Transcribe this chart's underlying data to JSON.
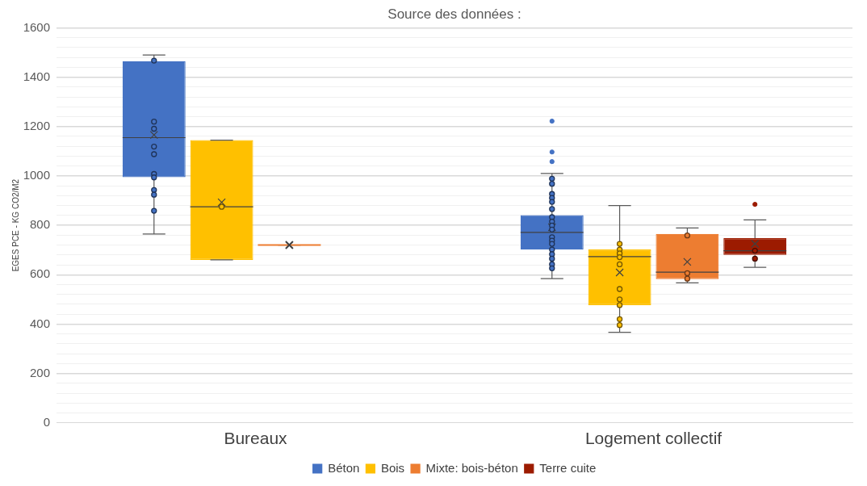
{
  "chart_data": {
    "type": "box",
    "subtitle": "Source des données :",
    "ylabel": "EGES PCE - KG CO2/M2",
    "categories": [
      "Bureaux",
      "Logement collectif"
    ],
    "ylim": [
      0,
      1600
    ],
    "yticks": [
      0,
      {
        "value": 40,
        "label": null
      },
      {
        "value": 80,
        "label": null
      },
      {
        "value": 120,
        "label": null
      },
      {
        "value": 160,
        "label": null
      },
      200,
      {
        "value": 240,
        "label": null
      },
      {
        "value": 280,
        "label": null
      },
      {
        "value": 320,
        "label": null
      },
      {
        "value": 360,
        "label": null
      },
      400,
      {
        "value": 440,
        "label": null
      },
      {
        "value": 480,
        "label": null
      },
      {
        "value": 520,
        "label": null
      },
      {
        "value": 560,
        "label": null
      },
      600,
      {
        "value": 640,
        "label": null
      },
      {
        "value": 680,
        "label": null
      },
      {
        "value": 720,
        "label": null
      },
      {
        "value": 760,
        "label": null
      },
      800,
      {
        "value": 840,
        "label": null
      },
      {
        "value": 880,
        "label": null
      },
      {
        "value": 920,
        "label": null
      },
      {
        "value": 960,
        "label": null
      },
      1000,
      {
        "value": 1040,
        "label": null
      },
      {
        "value": 1080,
        "label": null
      },
      {
        "value": 1120,
        "label": null
      },
      {
        "value": 1160,
        "label": null
      },
      1200,
      {
        "value": 1240,
        "label": null
      },
      {
        "value": 1280,
        "label": null
      },
      {
        "value": 1320,
        "label": null
      },
      {
        "value": 1360,
        "label": null
      },
      1400,
      {
        "value": 1440,
        "label": null
      },
      {
        "value": 1480,
        "label": null
      },
      {
        "value": 1520,
        "label": null
      },
      {
        "value": 1560,
        "label": null
      },
      1600
    ],
    "grid": "y",
    "legend": "bottom",
    "series": [
      {
        "name": "Béton",
        "color": "#4472c4",
        "boxes": [
          {
            "low": 765,
            "q1": 995,
            "median": 1155,
            "q3": 1465,
            "high": 1490,
            "mean": 1166
          },
          {
            "low": 584,
            "q1": 702,
            "median": 771,
            "q3": 841,
            "high": 1010,
            "mean": 792,
            "outliers": [
              1222,
              1097,
              1058
            ]
          }
        ]
      },
      {
        "name": "Bois",
        "color": "#ffc000",
        "boxes": [
          {
            "low": 660,
            "q1": 660,
            "median": 875,
            "q3": 1145,
            "high": 1145,
            "mean": 893
          },
          {
            "low": 367,
            "q1": 477,
            "median": 673,
            "q3": 702,
            "high": 880,
            "mean": 609
          }
        ]
      },
      {
        "name": "Mixte: bois-béton",
        "color": "#ed7d31",
        "boxes": [
          {
            "low": 720,
            "q1": 720,
            "median": 720,
            "q3": 720,
            "high": 720,
            "mean": 720
          },
          {
            "low": 567,
            "q1": 582,
            "median": 610,
            "q3": 765,
            "high": 789,
            "mean": 652
          }
        ]
      },
      {
        "name": "Terre cuite",
        "color": "#9c1b00",
        "boxes": [
          null,
          {
            "low": 630,
            "q1": 680,
            "median": 697,
            "q3": 748,
            "high": 822,
            "mean": 725,
            "outliers": [
              885
            ]
          }
        ]
      },
      {
        "type": "scatter",
        "color": "#4472c4",
        "marker": "circle",
        "x": [
          "Bureaux",
          "Bureaux",
          "Bureaux",
          "Bureaux",
          "Bureaux",
          "Bureaux",
          "Bureaux",
          "Bureaux",
          "Bureaux",
          "Bureaux",
          "Logement collectif",
          "Logement collectif",
          "Logement collectif",
          "Logement collectif",
          "Logement collectif",
          "Logement collectif",
          "Logement collectif",
          "Logement collectif",
          "Logement collectif",
          "Logement collectif",
          "Logement collectif",
          "Logement collectif",
          "Logement collectif",
          "Logement collectif",
          "Logement collectif",
          "Logement collectif",
          "Logement collectif",
          "Logement collectif"
        ],
        "values": [
          1467,
          1220,
          1191,
          1119,
          1088,
          1008,
          994,
          943,
          924,
          859,
          989,
          968,
          927,
          911,
          895,
          866,
          833,
          815,
          799,
          783,
          752,
          738,
          725,
          702,
          683,
          665,
          642,
          626
        ]
      },
      {
        "type": "scatter",
        "color": "#ffc000",
        "marker": "circle",
        "x": [
          "Bureaux",
          "Logement collectif",
          "Logement collectif",
          "Logement collectif",
          "Logement collectif",
          "Logement collectif",
          "Logement collectif",
          "Logement collectif",
          "Logement collectif",
          "Logement collectif",
          "Logement collectif"
        ],
        "values": [
          875,
          725,
          702,
          686,
          671,
          642,
          542,
          500,
          477,
          420,
          396
        ]
      },
      {
        "type": "scatter",
        "color": "#ed7d31",
        "marker": "circle",
        "x": [
          "Logement collectif",
          "Logement collectif",
          "Logement collectif"
        ],
        "values": [
          759,
          606,
          584
        ]
      },
      {
        "type": "scatter",
        "color": "#9c1b00",
        "marker": "circle",
        "x": [
          "Logement collectif",
          "Logement collectif"
        ],
        "values": [
          697,
          665
        ]
      }
    ]
  }
}
